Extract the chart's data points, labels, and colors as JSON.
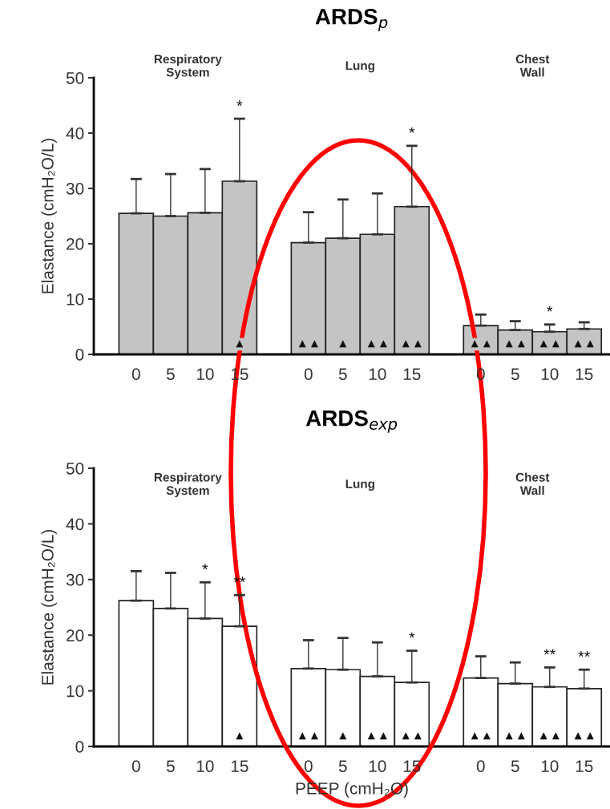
{
  "chart_data": [
    {
      "type": "bar",
      "title": "ARDS$_{p}$",
      "ylabel": "Elastance (cmH₂O/L)",
      "categories": [
        "0",
        "5",
        "10",
        "15",
        "0",
        "5",
        "10",
        "15",
        "0",
        "5",
        "10",
        "15"
      ],
      "values": [
        25.5,
        25.0,
        25.6,
        31.3,
        20.2,
        21.0,
        21.7,
        26.7,
        5.2,
        4.4,
        4.1,
        4.6
      ],
      "errors": [
        [
          25.5,
          31.7
        ],
        [
          25.0,
          32.6
        ],
        [
          25.6,
          33.5
        ],
        [
          31.3,
          42.6
        ],
        [
          20.2,
          25.7
        ],
        [
          21.0,
          28.0
        ],
        [
          21.7,
          29.1
        ],
        [
          26.7,
          37.7
        ],
        [
          5.2,
          7.2
        ],
        [
          4.4,
          6.0
        ],
        [
          4.1,
          5.4
        ],
        [
          4.6,
          5.8
        ]
      ],
      "color": "#c4c4c4",
      "ylim": [
        0,
        50
      ],
      "yticks": [
        0,
        10,
        20,
        30,
        40,
        50
      ],
      "grid": false,
      "annotations": [
        "Respiratory\nSystem",
        "Lung",
        "Chest\nWall",
        "*",
        "▲",
        "▲▲",
        "▲",
        "▲▲",
        "*",
        "▲▲",
        "▲▲",
        "▲▲",
        "*",
        "▲▲",
        "▲▲"
      ]
    },
    {
      "type": "bar",
      "title": "ARDS$_{exp}$",
      "ylabel": "Elastance (cmH₂O/L)",
      "xlabel": "PEEP (cmH₂O)",
      "categories": [
        "0",
        "5",
        "10",
        "15",
        "0",
        "5",
        "10",
        "15",
        "0",
        "5",
        "10",
        "15"
      ],
      "values": [
        26.2,
        24.8,
        23.0,
        21.6,
        14.0,
        13.8,
        12.6,
        11.5,
        12.3,
        11.3,
        10.7,
        10.4
      ],
      "errors": [
        [
          26.2,
          31.5
        ],
        [
          24.8,
          31.2
        ],
        [
          23.0,
          29.5
        ],
        [
          21.6,
          27.2
        ],
        [
          14.0,
          19.1
        ],
        [
          13.8,
          19.5
        ],
        [
          12.6,
          18.7
        ],
        [
          11.5,
          17.2
        ],
        [
          12.3,
          16.2
        ],
        [
          11.3,
          15.1
        ],
        [
          10.7,
          14.2
        ],
        [
          10.4,
          13.8
        ]
      ],
      "color": "#ffffff",
      "ylim": [
        0,
        50
      ],
      "yticks": [
        0,
        10,
        20,
        30,
        40,
        50
      ],
      "grid": false,
      "annotations": [
        "Respiratory\nSystem",
        "Lung",
        "Chest\nWall",
        "*",
        "**",
        "▲",
        "▲▲",
        "▲",
        "▲▲",
        "*",
        "▲▲",
        "▲▲",
        "▲▲",
        "**",
        "▲▲",
        "**",
        "▲▲"
      ]
    }
  ]
}
